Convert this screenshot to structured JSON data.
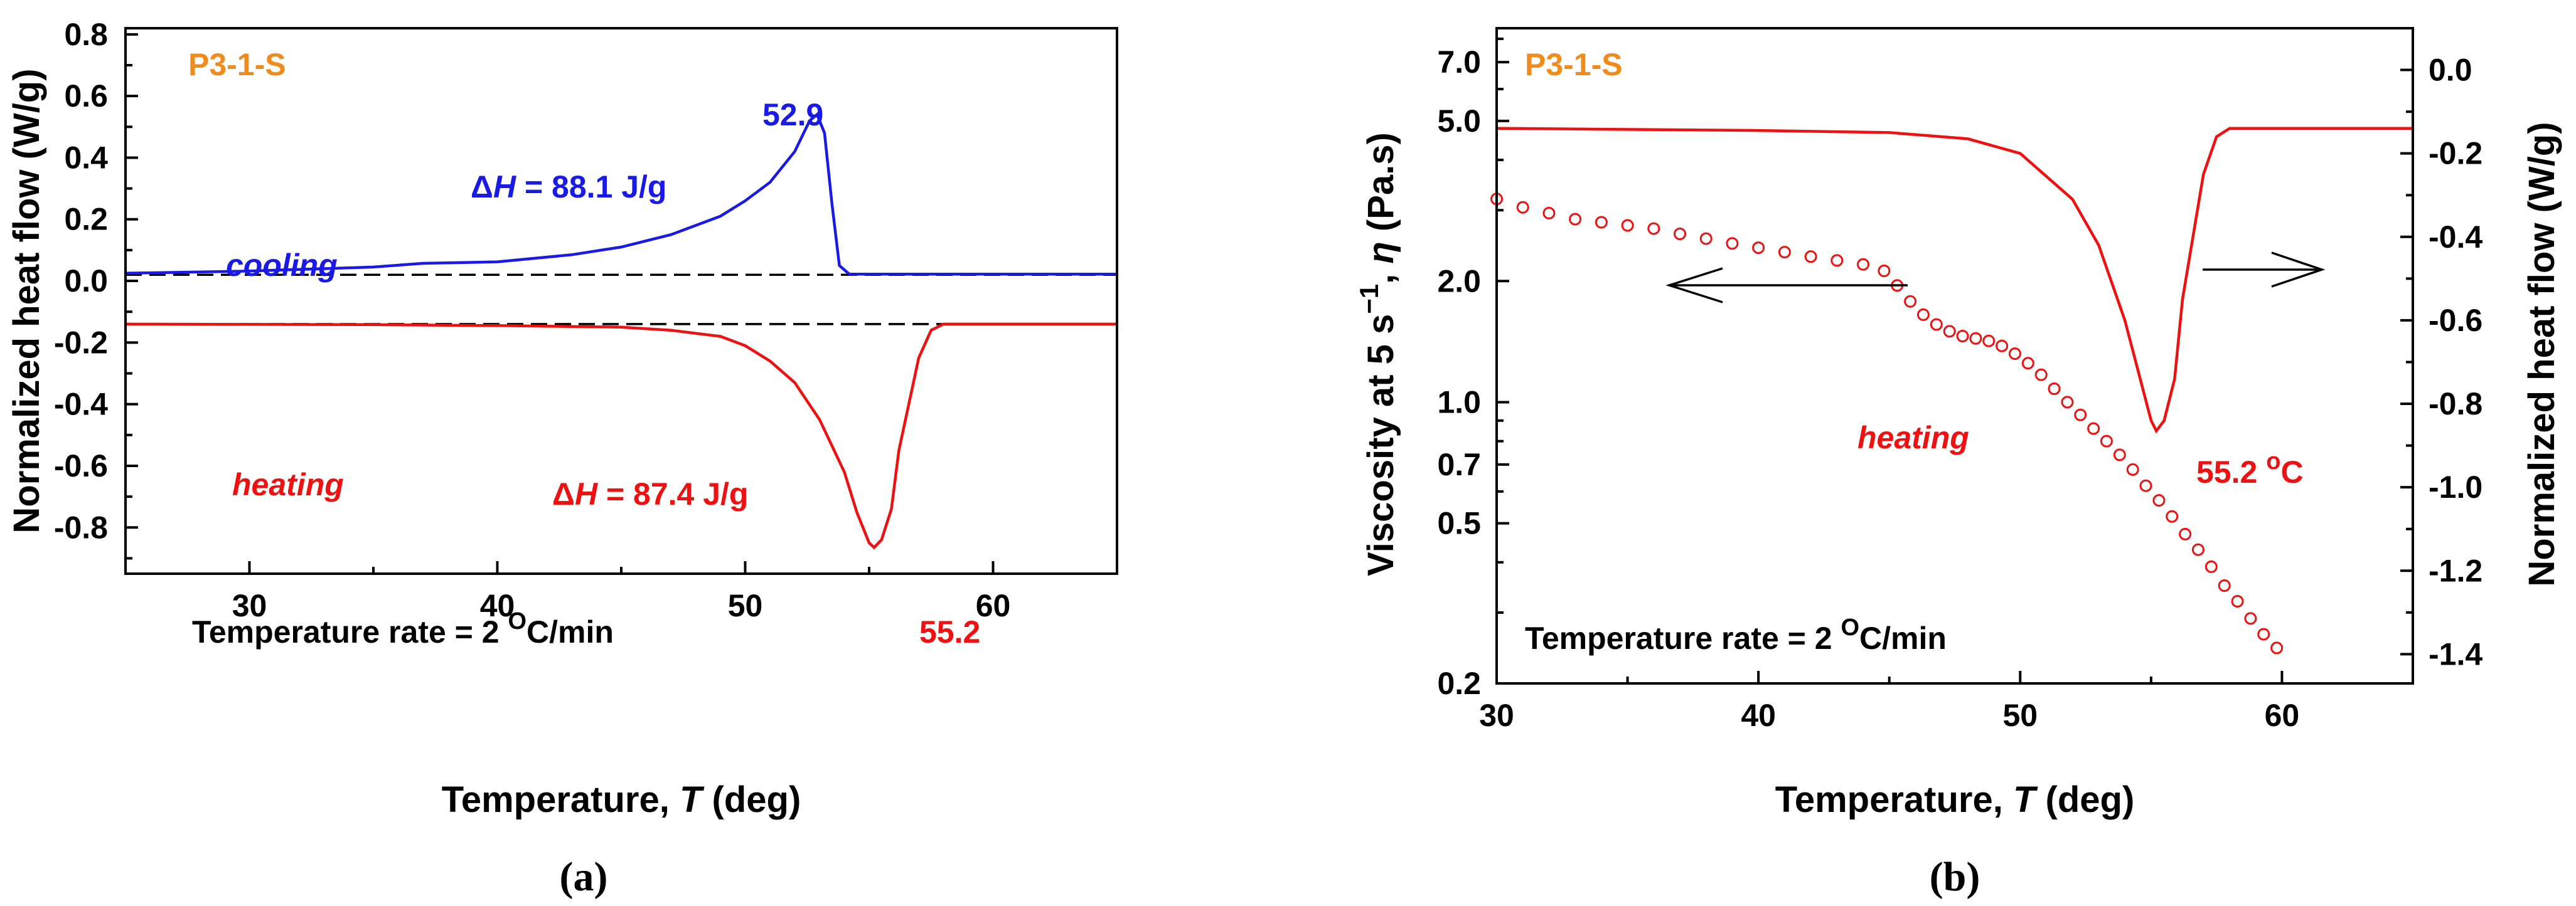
{
  "chart_data": [
    {
      "type": "line",
      "panel": "a",
      "caption": "(a)",
      "sample_label": "P3-1-S",
      "xlabel": "Temperature, ",
      "xlabel_var": "T",
      "xlabel_unit": " (deg)",
      "ylabel": "Normalized heat flow (W/g)",
      "xlim": [
        25,
        65
      ],
      "ylim": [
        -0.95,
        0.82
      ],
      "xticks": [
        30,
        40,
        50,
        60
      ],
      "yticks": [
        0.8,
        0.6,
        0.4,
        0.2,
        0.0,
        -0.2,
        -0.4,
        -0.6,
        -0.8
      ],
      "ytick_labels": [
        "0.8",
        "0.6",
        "0.4",
        "0.2",
        "0.0",
        "-0.2",
        "-0.4",
        "-0.6",
        "-0.8"
      ],
      "baselines": [
        0.02,
        -0.14
      ],
      "series": [
        {
          "name": "cooling",
          "color": "#1a1ae6",
          "x": [
            25,
            30,
            35,
            37,
            40,
            43,
            45,
            47,
            49,
            50,
            51,
            52,
            52.6,
            52.9,
            53.2,
            53.5,
            53.8,
            54.2,
            65
          ],
          "y": [
            0.025,
            0.032,
            0.045,
            0.057,
            0.062,
            0.085,
            0.11,
            0.15,
            0.21,
            0.26,
            0.32,
            0.42,
            0.52,
            0.54,
            0.48,
            0.25,
            0.05,
            0.022,
            0.022
          ]
        },
        {
          "name": "heating",
          "color": "#ee1111",
          "x": [
            25,
            35,
            40,
            45,
            47,
            49,
            50,
            51,
            52,
            53,
            54,
            54.5,
            55,
            55.2,
            55.5,
            55.9,
            56.2,
            56.6,
            57,
            57.5,
            58,
            65
          ],
          "y": [
            -0.14,
            -0.142,
            -0.145,
            -0.15,
            -0.16,
            -0.18,
            -0.21,
            -0.26,
            -0.33,
            -0.45,
            -0.62,
            -0.75,
            -0.85,
            -0.865,
            -0.84,
            -0.74,
            -0.55,
            -0.4,
            -0.25,
            -0.16,
            -0.14,
            -0.14
          ]
        }
      ],
      "annotations": {
        "peak_cooling": "52.9",
        "peak_heating": "55.2",
        "dh_prefix": "Δ",
        "dh_var": "H",
        "dh_cooling": " = 88.1 J/g",
        "dh_heating": " = 87.4 J/g",
        "cooling_label": "cooling",
        "heating_label": "heating",
        "rate_text": "Temperature rate = 2 ",
        "rate_sup": "O",
        "rate_unit": "C/min"
      }
    },
    {
      "type": "scatter+line",
      "panel": "b",
      "caption": "(b)",
      "sample_label": "P3-1-S",
      "xlabel": "Temperature, ",
      "xlabel_var": "T",
      "xlabel_unit": " (deg)",
      "ylabel_left_pre": "Viscosity at 5 s",
      "ylabel_left_sup": "−1",
      "ylabel_left_mid": ", ",
      "ylabel_left_var": "η",
      "ylabel_left_post": " (Pa.s)",
      "ylabel_right": "Normalized heat flow (W/g)",
      "xlim": [
        30,
        65
      ],
      "ylim_left_log": [
        0.2,
        8.5
      ],
      "ylim_right": [
        -1.47,
        0.1
      ],
      "xticks": [
        30,
        40,
        50,
        60
      ],
      "yticks_left": [
        7.0,
        5.0,
        2.0,
        1.0,
        0.7,
        0.5,
        0.2
      ],
      "yticks_left_labels": [
        "7.0",
        "5.0",
        "2.0",
        "1.0",
        "0.7",
        "0.5",
        "0.2"
      ],
      "yticks_right": [
        0.0,
        -0.2,
        -0.4,
        -0.6,
        -0.8,
        -1.0,
        -1.2,
        -1.4
      ],
      "yticks_right_labels": [
        "0.0",
        "-0.2",
        "-0.4",
        "-0.6",
        "-0.8",
        "-1.0",
        "-1.2",
        "-1.4"
      ],
      "series": [
        {
          "name": "viscosity",
          "axis": "left",
          "color": "#ee1111",
          "x": [
            30,
            31,
            32,
            33,
            34,
            35,
            36,
            37,
            38,
            39,
            40,
            41,
            42,
            43,
            44,
            44.8,
            45.3,
            45.8,
            46.3,
            46.8,
            47.3,
            47.8,
            48.3,
            48.8,
            49.3,
            49.8,
            50.3,
            50.8,
            51.3,
            51.8,
            52.3,
            52.8,
            53.3,
            53.8,
            54.3,
            54.8,
            55.3,
            55.8,
            56.3,
            56.8,
            57.3,
            57.8,
            58.3,
            58.8,
            59.3,
            59.8
          ],
          "y": [
            3.2,
            3.05,
            2.95,
            2.85,
            2.8,
            2.75,
            2.7,
            2.62,
            2.55,
            2.48,
            2.42,
            2.36,
            2.3,
            2.25,
            2.2,
            2.12,
            1.95,
            1.78,
            1.65,
            1.56,
            1.5,
            1.46,
            1.44,
            1.42,
            1.38,
            1.32,
            1.25,
            1.17,
            1.08,
            1.0,
            0.93,
            0.86,
            0.8,
            0.74,
            0.68,
            0.62,
            0.57,
            0.52,
            0.47,
            0.43,
            0.39,
            0.35,
            0.32,
            0.29,
            0.265,
            0.245
          ]
        },
        {
          "name": "heat flow",
          "axis": "right",
          "color": "#ee1111",
          "x": [
            30,
            40,
            45,
            48,
            50,
            52,
            53,
            54,
            54.5,
            55,
            55.2,
            55.5,
            55.9,
            56.2,
            56.6,
            57,
            57.5,
            58,
            65
          ],
          "y": [
            -0.14,
            -0.145,
            -0.15,
            -0.165,
            -0.2,
            -0.31,
            -0.42,
            -0.6,
            -0.72,
            -0.84,
            -0.865,
            -0.84,
            -0.74,
            -0.55,
            -0.4,
            -0.25,
            -0.16,
            -0.14,
            -0.14
          ]
        }
      ],
      "annotations": {
        "peak": "55.2 ",
        "peak_sup": "o",
        "peak_unit": "C",
        "heating_label": "heating",
        "rate_text": "Temperature rate = 2 ",
        "rate_sup": "O",
        "rate_unit": "C/min"
      }
    }
  ]
}
